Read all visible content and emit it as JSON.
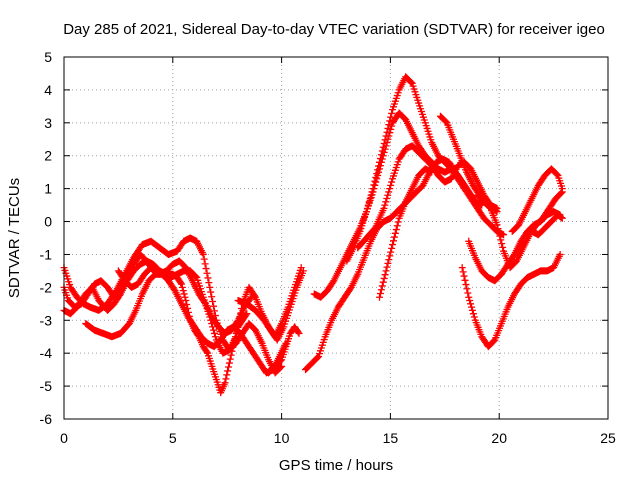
{
  "chart_data": {
    "type": "scatter",
    "title": "Day 285 of 2021, Sidereal Day-to-day VTEC variation (SDTVAR) for receiver igeo",
    "xlabel": "GPS time / hours",
    "ylabel": "SDTVAR / TECUs",
    "xlim": [
      0,
      25
    ],
    "ylim": [
      -6,
      5
    ],
    "xticks": [
      0,
      5,
      10,
      15,
      20,
      25
    ],
    "yticks": [
      -6,
      -5,
      -4,
      -3,
      -2,
      -1,
      0,
      1,
      2,
      3,
      4,
      5
    ],
    "grid": true,
    "legend": "none",
    "marker": "+",
    "color": "#ff0000",
    "series": [
      {
        "x": [
          0.0,
          0.3,
          0.6,
          1.0,
          1.3,
          1.6,
          2.0,
          2.3,
          2.6,
          2.9,
          3.2,
          3.5,
          3.8,
          4.1,
          4.4,
          4.7,
          5.0,
          5.2,
          5.4,
          5.6,
          5.8,
          6.0,
          6.2,
          6.4,
          6.6,
          6.8,
          7.0,
          7.2,
          7.4,
          7.6,
          7.8,
          8.0,
          8.2,
          8.4
        ],
        "y": [
          -2.7,
          -2.8,
          -2.6,
          -2.2,
          -2.0,
          -2.4,
          -2.7,
          -2.5,
          -2.2,
          -1.8,
          -1.5,
          -1.3,
          -1.2,
          -1.3,
          -1.5,
          -1.6,
          -1.6,
          -1.7,
          -1.9,
          -2.4,
          -3.0,
          -3.3,
          -3.5,
          -3.8,
          -4.0,
          -4.4,
          -4.8,
          -5.2,
          -4.9,
          -4.3,
          -3.7,
          -3.2,
          -3.0,
          -2.8
        ]
      },
      {
        "x": [
          0.0,
          0.2,
          0.5,
          0.8,
          1.1,
          1.4,
          1.7,
          2.0,
          2.3,
          2.6,
          2.9,
          3.2,
          3.5,
          3.8,
          4.1,
          4.4,
          4.7,
          5.0,
          5.3,
          5.6,
          5.9,
          6.2,
          6.5,
          6.8,
          7.1,
          7.4,
          7.7,
          8.0,
          8.3,
          8.6
        ],
        "y": [
          -2.0,
          -2.4,
          -2.6,
          -2.5,
          -2.2,
          -1.9,
          -1.8,
          -2.0,
          -2.3,
          -2.1,
          -1.7,
          -1.3,
          -1.0,
          -1.2,
          -1.5,
          -1.6,
          -1.5,
          -1.3,
          -1.2,
          -1.4,
          -1.8,
          -2.2,
          -2.5,
          -2.9,
          -3.2,
          -3.4,
          -3.3,
          -3.0,
          -2.6,
          -2.3
        ]
      },
      {
        "x": [
          1.0,
          1.4,
          1.8,
          2.2,
          2.6,
          3.0,
          3.3,
          3.6,
          3.9,
          4.2,
          4.5,
          4.8,
          5.1,
          5.4,
          5.7,
          6.0,
          6.3,
          6.6,
          6.9,
          7.2,
          7.5,
          7.8,
          8.1,
          8.4,
          8.7,
          9.0,
          9.3,
          9.6,
          9.9,
          10.2
        ],
        "y": [
          -3.1,
          -3.3,
          -3.4,
          -3.5,
          -3.4,
          -3.1,
          -2.7,
          -2.2,
          -1.8,
          -1.6,
          -1.6,
          -1.8,
          -2.1,
          -2.5,
          -2.9,
          -3.2,
          -3.5,
          -3.7,
          -3.8,
          -3.6,
          -3.3,
          -3.2,
          -3.4,
          -3.7,
          -4.0,
          -4.3,
          -4.6,
          -4.5,
          -4.1,
          -3.7
        ]
      },
      {
        "x": [
          0.0,
          0.3,
          0.6,
          0.9,
          1.2,
          1.6,
          2.0,
          2.4,
          2.8,
          3.2,
          3.6,
          4.0,
          4.4,
          4.8,
          5.2,
          5.5,
          5.8,
          6.1,
          6.4,
          6.7,
          7.0,
          7.3,
          7.6,
          7.9,
          8.2,
          8.5,
          8.8,
          9.1,
          9.4,
          9.7,
          10.0
        ],
        "y": [
          -1.4,
          -2.0,
          -2.3,
          -2.5,
          -2.6,
          -2.7,
          -2.5,
          -2.1,
          -1.6,
          -1.1,
          -0.7,
          -0.6,
          -0.8,
          -1.0,
          -0.9,
          -0.6,
          -0.5,
          -0.6,
          -1.0,
          -2.0,
          -3.0,
          -3.6,
          -3.9,
          -3.7,
          -3.4,
          -3.1,
          -3.3,
          -3.7,
          -4.2,
          -4.6,
          -4.4
        ]
      },
      {
        "x": [
          2.5,
          2.8,
          3.1,
          3.4,
          3.7,
          4.0,
          4.3,
          4.6,
          4.9,
          5.2,
          5.5,
          5.8,
          6.1,
          6.4,
          6.7,
          7.0,
          7.3,
          7.6,
          7.9,
          8.2,
          8.5,
          8.8,
          9.1,
          9.4,
          9.7,
          10.0,
          10.3,
          10.6,
          10.9
        ],
        "y": [
          -1.5,
          -1.8,
          -2.0,
          -1.9,
          -1.6,
          -1.4,
          -1.5,
          -1.6,
          -1.7,
          -1.6,
          -1.5,
          -1.5,
          -1.7,
          -2.3,
          -2.9,
          -3.6,
          -4.0,
          -3.9,
          -3.5,
          -2.5,
          -2.0,
          -2.3,
          -2.8,
          -3.2,
          -3.5,
          -3.1,
          -2.6,
          -2.0,
          -1.4
        ]
      },
      {
        "x": [
          8.0,
          8.4,
          8.8,
          9.2,
          9.5,
          9.8,
          10.1,
          10.4,
          10.7,
          11.0
        ],
        "y": [
          -2.4,
          -2.5,
          -2.7,
          -3.0,
          -3.3,
          -3.6,
          -3.2,
          -2.6,
          -2.0,
          -1.5
        ]
      },
      {
        "x": [
          9.4,
          9.7,
          10.0,
          10.2,
          10.4,
          10.6,
          10.8
        ],
        "y": [
          -4.6,
          -4.4,
          -4.2,
          -3.8,
          -3.4,
          -3.2,
          -3.4
        ]
      },
      {
        "x": [
          11.1,
          11.4,
          11.7,
          12.0,
          12.3,
          12.6,
          12.9,
          13.2,
          13.5,
          13.8,
          14.1,
          14.4,
          14.7,
          15.0,
          15.3,
          15.6,
          15.9,
          16.2,
          16.5,
          16.8,
          17.1,
          17.4,
          17.7,
          18.0,
          18.3,
          18.6,
          18.9,
          19.2
        ],
        "y": [
          -4.5,
          -4.3,
          -4.1,
          -3.5,
          -3.0,
          -2.6,
          -2.3,
          -2.0,
          -1.6,
          -1.1,
          -0.6,
          -0.2,
          0.0,
          0.1,
          0.3,
          0.5,
          0.7,
          0.9,
          1.1,
          1.5,
          1.8,
          1.9,
          1.8,
          1.5,
          1.2,
          0.9,
          0.6,
          0.5
        ]
      },
      {
        "x": [
          11.5,
          11.8,
          12.1,
          12.4,
          12.7,
          13.0,
          13.3,
          13.6,
          13.9,
          14.2,
          14.5,
          14.8,
          15.1,
          15.4,
          15.7,
          16.0,
          16.3,
          16.6,
          16.9,
          17.2,
          17.5,
          17.8,
          18.1,
          18.4,
          18.7,
          19.0,
          19.3,
          19.6,
          19.9
        ],
        "y": [
          -2.2,
          -2.3,
          -2.1,
          -1.8,
          -1.4,
          -1.0,
          -0.6,
          -0.2,
          0.3,
          0.9,
          1.6,
          2.3,
          3.0,
          3.3,
          3.1,
          2.7,
          2.3,
          2.0,
          1.8,
          1.6,
          1.5,
          1.6,
          1.4,
          1.1,
          0.8,
          0.5,
          0.6,
          0.5,
          0.4
        ]
      },
      {
        "x": [
          13.0,
          13.3,
          13.6,
          13.9,
          14.2,
          14.5,
          14.8,
          15.1,
          15.4,
          15.7,
          16.0,
          16.3,
          16.6,
          16.9,
          17.2,
          17.5,
          17.8,
          18.1,
          18.4,
          18.7,
          19.0,
          19.3,
          19.6,
          19.9,
          20.2
        ],
        "y": [
          -1.2,
          -0.8,
          -0.3,
          0.3,
          1.0,
          1.8,
          2.6,
          3.4,
          4.0,
          4.4,
          4.2,
          3.6,
          3.0,
          2.4,
          2.0,
          1.8,
          1.6,
          1.3,
          1.0,
          0.7,
          0.4,
          0.1,
          -0.1,
          -0.3,
          -0.4
        ]
      },
      {
        "x": [
          13.5,
          13.9,
          14.3,
          14.7,
          15.1,
          15.4,
          15.7,
          16.0,
          16.3,
          16.6,
          16.9,
          17.2,
          17.5,
          17.8,
          18.1,
          18.4,
          18.7,
          19.0,
          19.3,
          19.6,
          19.9
        ],
        "y": [
          -0.8,
          -0.5,
          -0.2,
          0.4,
          1.3,
          1.9,
          2.2,
          2.3,
          2.1,
          1.9,
          1.7,
          1.4,
          1.2,
          1.3,
          1.7,
          1.8,
          1.6,
          1.2,
          0.8,
          0.5,
          0.3
        ]
      },
      {
        "x": [
          14.5,
          14.8,
          15.1,
          15.4,
          15.7,
          16.0,
          16.3,
          16.6,
          16.9
        ],
        "y": [
          -2.3,
          -1.5,
          -0.7,
          0.1,
          0.6,
          1.0,
          1.4,
          1.6,
          1.5
        ]
      },
      {
        "x": [
          17.3,
          17.6,
          17.9,
          18.2,
          18.5,
          18.8,
          19.1,
          19.4
        ],
        "y": [
          3.2,
          3.0,
          2.5,
          2.0,
          1.5,
          1.1,
          0.8,
          0.6
        ]
      },
      {
        "x": [
          18.3,
          18.6,
          18.9,
          19.2,
          19.5,
          19.8,
          20.1,
          20.4,
          20.7,
          21.0,
          21.3,
          21.6,
          21.9,
          22.2,
          22.5,
          22.8
        ],
        "y": [
          -1.4,
          -2.3,
          -3.0,
          -3.5,
          -3.8,
          -3.6,
          -3.1,
          -2.6,
          -2.2,
          -1.9,
          -1.7,
          -1.6,
          -1.5,
          -1.5,
          -1.4,
          -1.0
        ]
      },
      {
        "x": [
          18.6,
          18.9,
          19.2,
          19.5,
          19.8,
          20.1,
          20.4,
          20.7,
          21.0,
          21.3,
          21.6,
          21.9,
          22.2,
          22.5,
          22.8
        ],
        "y": [
          -0.6,
          -1.1,
          -1.5,
          -1.7,
          -1.8,
          -1.6,
          -1.3,
          -1.0,
          -0.6,
          -0.3,
          -0.1,
          0.0,
          0.2,
          0.3,
          0.2
        ]
      },
      {
        "x": [
          19.0,
          19.3,
          19.6,
          19.9,
          20.2,
          20.5,
          20.8,
          21.1,
          21.4,
          21.7,
          22.0,
          22.3,
          22.6,
          22.9
        ],
        "y": [
          0.8,
          0.6,
          0.4,
          -0.1,
          -0.9,
          -1.4,
          -1.2,
          -0.8,
          -0.4,
          -0.1,
          0.1,
          0.4,
          0.7,
          0.9
        ]
      },
      {
        "x": [
          20.6,
          20.9,
          21.2,
          21.5,
          21.8,
          22.1,
          22.4,
          22.7,
          22.9
        ],
        "y": [
          -0.3,
          -0.1,
          0.3,
          0.7,
          1.1,
          1.4,
          1.6,
          1.4,
          1.0
        ]
      },
      {
        "x": [
          21.5,
          21.8,
          22.1,
          22.4,
          22.7,
          22.9
        ],
        "y": [
          -0.3,
          -0.4,
          -0.2,
          0.0,
          0.2,
          0.1
        ]
      }
    ]
  }
}
